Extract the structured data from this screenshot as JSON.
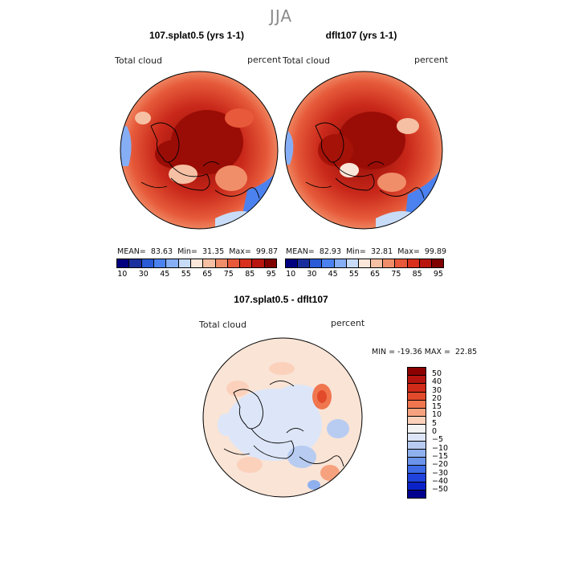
{
  "season": "JJA",
  "panels": [
    {
      "title": "107.splat0.5 (yrs 1-1)",
      "variable": "Total cloud",
      "units": "percent",
      "mean_label": "MEAN=",
      "mean": "83.63",
      "min_label": "Min=",
      "min": "31.35",
      "max_label": "Max=",
      "max": "99.87"
    },
    {
      "title": "dflt107 (yrs 1-1)",
      "variable": "Total cloud",
      "units": "percent",
      "mean_label": "MEAN=",
      "mean": "82.93",
      "min_label": "Min=",
      "min": "32.81",
      "max_label": "Max=",
      "max": "99.89"
    }
  ],
  "abs_colorbar": {
    "colors": [
      "#00007f",
      "#1a2f9e",
      "#2a5bd6",
      "#4c82ef",
      "#86aef5",
      "#c8dcf8",
      "#fbe7d9",
      "#f6c0a4",
      "#f18e6a",
      "#e8583a",
      "#d8301d",
      "#b8150f",
      "#800000"
    ],
    "tick_labels": [
      "10",
      "30",
      "45",
      "55",
      "65",
      "75",
      "85",
      "95"
    ]
  },
  "diff": {
    "title": "107.splat0.5 - dflt107",
    "variable": "Total cloud",
    "units": "percent",
    "minmax": "MIN = -19.36 MAX =  22.85",
    "colorbar_colors": [
      "#8b0000",
      "#b5140e",
      "#d02a18",
      "#e24a2c",
      "#f0764f",
      "#f7a27f",
      "#fbd1bc",
      "#f2f2f2",
      "#dde6f8",
      "#b8ccf2",
      "#8fb0ee",
      "#6a93ea",
      "#3e6ae6",
      "#1f43dc",
      "#0b22c8",
      "#00008f"
    ],
    "colorbar_labels": [
      "50",
      "40",
      "30",
      "20",
      "15",
      "10",
      "5",
      "0",
      "−5",
      "−10",
      "−15",
      "−20",
      "−30",
      "−40",
      "−50"
    ]
  }
}
